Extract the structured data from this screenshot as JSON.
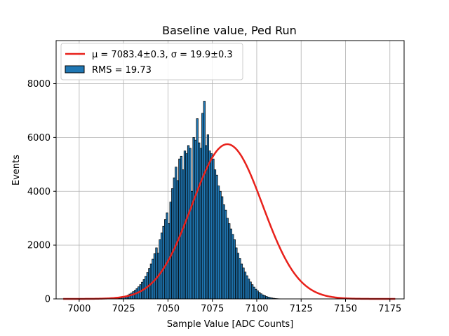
{
  "chart_data": {
    "type": "bar",
    "title": "Baseline value, Ped Run",
    "xlabel": "Sample Value [ADC Counts]",
    "ylabel": "Events",
    "xlim": [
      6987,
      7183
    ],
    "ylim": [
      0,
      9600
    ],
    "xticks": [
      7000,
      7025,
      7050,
      7075,
      7100,
      7125,
      7150,
      7175
    ],
    "yticks": [
      0,
      2000,
      4000,
      6000,
      8000
    ],
    "grid": true,
    "legend_placement": "top-left",
    "histogram": {
      "name": "RMS = 19.73",
      "color": "#1f77b4",
      "edge_color": "#000000",
      "bin_width": 1,
      "x_start": 7000,
      "values": [
        0,
        0,
        0,
        0,
        0,
        0,
        0,
        0,
        0,
        0,
        0,
        0,
        0,
        0,
        0,
        0,
        0,
        0,
        0,
        0,
        10,
        15,
        25,
        40,
        60,
        80,
        110,
        140,
        180,
        220,
        270,
        320,
        380,
        450,
        530,
        620,
        720,
        840,
        980,
        1130,
        1300,
        1480,
        1680,
        1900,
        1700,
        2200,
        2450,
        2700,
        2950,
        3200,
        2800,
        3600,
        4100,
        4500,
        4900,
        4400,
        5200,
        5300,
        4800,
        5500,
        5400,
        5700,
        5600,
        4000,
        6000,
        5900,
        6700,
        5800,
        5600,
        6900,
        7350,
        5700,
        6100,
        5500,
        5400,
        5200,
        4800,
        4600,
        4200,
        4000,
        3800,
        3500,
        3300,
        3000,
        2800,
        2600,
        2400,
        2200,
        1900,
        1700,
        1500,
        1300,
        1150,
        1000,
        860,
        740,
        630,
        530,
        440,
        360,
        300,
        240,
        190,
        150,
        120,
        90,
        70,
        50,
        35,
        25,
        15,
        10,
        5,
        0,
        0,
        0,
        0,
        0,
        0,
        0
      ]
    },
    "fit": {
      "name": "$\\mu = 7083.4 \\pm 0.3$, $\\sigma = 19.9 \\pm 0.3$",
      "display_label": "μ = 7083.4±0.3, σ = 19.9±0.3",
      "mu": 7083.4,
      "sigma": 19.9,
      "amplitude": 5750,
      "x_range": [
        6991,
        7178
      ],
      "color": "#e8211b"
    }
  }
}
